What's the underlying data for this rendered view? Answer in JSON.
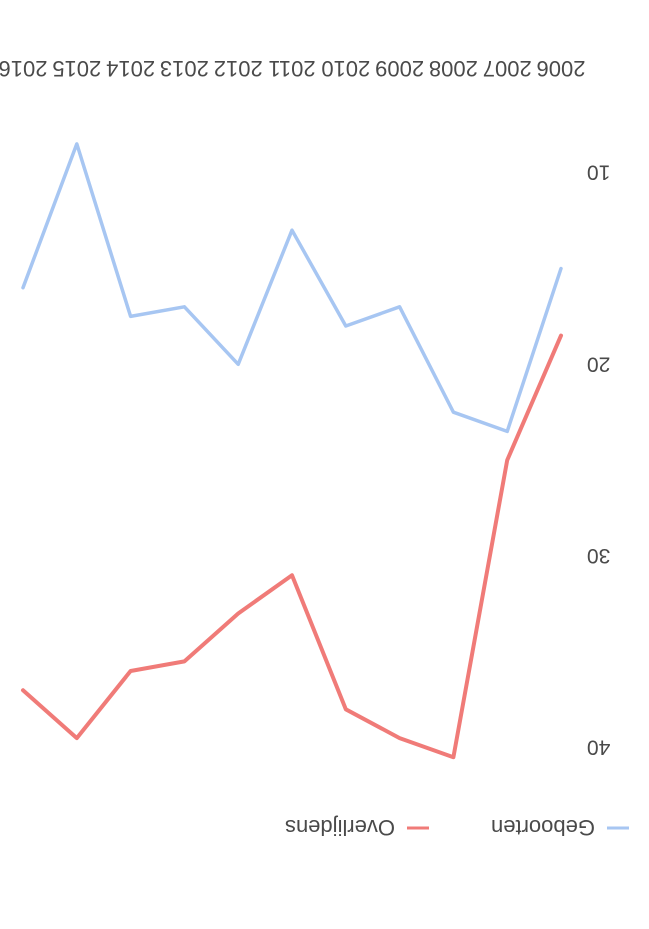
{
  "chart_data": {
    "type": "line",
    "orientation": "rotated-180",
    "title": "",
    "xlabel": "",
    "ylabel": "",
    "categories": [
      "2006",
      "2007",
      "2008",
      "2009",
      "2010",
      "2011",
      "2012",
      "2013",
      "2014",
      "2015",
      "2016"
    ],
    "x_ticks": [
      "2006",
      "2007",
      "2008",
      "2009",
      "2010",
      "2011",
      "2012",
      "2013",
      "2014",
      "2015",
      "2016"
    ],
    "y_ticks": [
      10,
      20,
      30,
      40
    ],
    "ylim": [
      6,
      42
    ],
    "grid": false,
    "legend_position": "top",
    "series": [
      {
        "name": "Geboorten",
        "color": "#a7c6f2",
        "values": [
          15,
          23.5,
          22.5,
          17,
          18,
          13,
          20,
          17,
          17.5,
          8.5,
          16
        ]
      },
      {
        "name": "Overlijdens",
        "color": "#f07b78",
        "values": [
          18.5,
          25,
          40.5,
          39.5,
          38,
          31,
          33,
          35.5,
          36,
          39.5,
          37
        ]
      }
    ]
  }
}
